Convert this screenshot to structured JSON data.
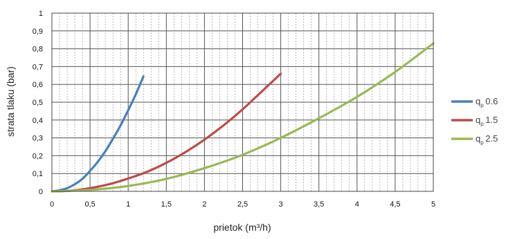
{
  "chart_data": {
    "type": "line",
    "title": "",
    "xlabel": "prietok (m³/h)",
    "ylabel": "strata tlaku (bar)",
    "xlim": [
      0,
      5
    ],
    "ylim": [
      0,
      1
    ],
    "x_ticks": [
      "0",
      "0,5",
      "1",
      "1,5",
      "2",
      "2,5",
      "3",
      "3,5",
      "4",
      "4,5",
      "5"
    ],
    "y_ticks": [
      "0",
      "0,1",
      "0,2",
      "0,3",
      "0,4",
      "0,5",
      "0,6",
      "0,7",
      "0,8",
      "0,9",
      "1"
    ],
    "grid": true,
    "minor_x_gridlines_per_interval": 4,
    "legend_position": "right",
    "series": [
      {
        "name": "q",
        "subscript": "p",
        "suffix": "0.6",
        "color": "#4a7ebb",
        "points": [
          [
            0,
            0
          ],
          [
            0.1,
            0.006
          ],
          [
            0.2,
            0.018
          ],
          [
            0.3,
            0.04
          ],
          [
            0.4,
            0.07
          ],
          [
            0.5,
            0.115
          ],
          [
            0.6,
            0.165
          ],
          [
            0.7,
            0.225
          ],
          [
            0.8,
            0.295
          ],
          [
            0.9,
            0.37
          ],
          [
            1.0,
            0.455
          ],
          [
            1.1,
            0.545
          ],
          [
            1.2,
            0.645
          ]
        ]
      },
      {
        "name": "q",
        "subscript": "p",
        "suffix": "1.5",
        "color": "#be4b48",
        "points": [
          [
            0,
            0
          ],
          [
            0.25,
            0.004
          ],
          [
            0.5,
            0.018
          ],
          [
            0.75,
            0.04
          ],
          [
            1.0,
            0.072
          ],
          [
            1.25,
            0.11
          ],
          [
            1.5,
            0.16
          ],
          [
            1.75,
            0.22
          ],
          [
            2.0,
            0.29
          ],
          [
            2.25,
            0.37
          ],
          [
            2.5,
            0.46
          ],
          [
            2.75,
            0.56
          ],
          [
            3.0,
            0.66
          ]
        ]
      },
      {
        "name": "q",
        "subscript": "p",
        "suffix": "2.5",
        "color": "#98b954",
        "points": [
          [
            0,
            0
          ],
          [
            0.5,
            0.008
          ],
          [
            1.0,
            0.03
          ],
          [
            1.5,
            0.07
          ],
          [
            2.0,
            0.13
          ],
          [
            2.5,
            0.205
          ],
          [
            3.0,
            0.3
          ],
          [
            3.5,
            0.41
          ],
          [
            4.0,
            0.53
          ],
          [
            4.5,
            0.67
          ],
          [
            5.0,
            0.83
          ]
        ]
      }
    ]
  }
}
